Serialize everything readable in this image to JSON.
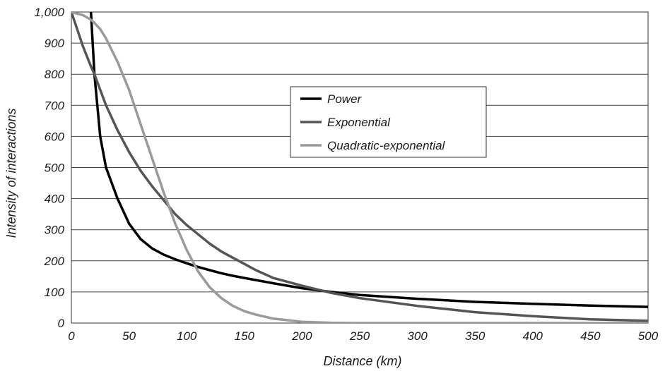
{
  "chart_data": {
    "type": "line",
    "title": "",
    "xlabel": "Distance  (km)",
    "ylabel": "Intensity of interactions",
    "xlim": [
      0,
      500
    ],
    "ylim": [
      0,
      1000
    ],
    "x_ticks": [
      "0",
      "50",
      "100",
      "150",
      "200",
      "250",
      "300",
      "350",
      "400",
      "450",
      "500"
    ],
    "y_ticks": [
      "0",
      "100",
      "200",
      "300",
      "400",
      "500",
      "600",
      "700",
      "800",
      "900",
      "1,000"
    ],
    "grid": "horizontal",
    "legend_position": "center-right",
    "x": [
      0,
      10,
      17,
      20,
      25,
      30,
      40,
      50,
      60,
      70,
      80,
      90,
      100,
      110,
      120,
      130,
      140,
      150,
      160,
      175,
      200,
      225,
      250,
      300,
      350,
      400,
      450,
      500
    ],
    "series": [
      {
        "name": "Power",
        "color": "#000000",
        "values": [
          null,
          null,
          1000,
          800,
          600,
          500,
          400,
          320,
          270,
          240,
          220,
          205,
          192,
          180,
          170,
          160,
          152,
          145,
          138,
          128,
          112,
          100,
          90,
          78,
          68,
          62,
          56,
          52
        ]
      },
      {
        "name": "Exponential",
        "color": "#555555",
        "values": [
          1000,
          890,
          825,
          800,
          750,
          700,
          620,
          550,
          490,
          440,
          395,
          350,
          315,
          285,
          255,
          230,
          210,
          190,
          170,
          145,
          120,
          97,
          80,
          55,
          35,
          22,
          12,
          7
        ]
      },
      {
        "name": "Quadratic-exponential",
        "color": "#9a9a9a",
        "values": [
          1000,
          990,
          975,
          965,
          945,
          915,
          840,
          750,
          640,
          530,
          420,
          320,
          235,
          165,
          115,
          80,
          55,
          38,
          27,
          14,
          4,
          1,
          0,
          0,
          0,
          0,
          0,
          0
        ]
      }
    ]
  }
}
